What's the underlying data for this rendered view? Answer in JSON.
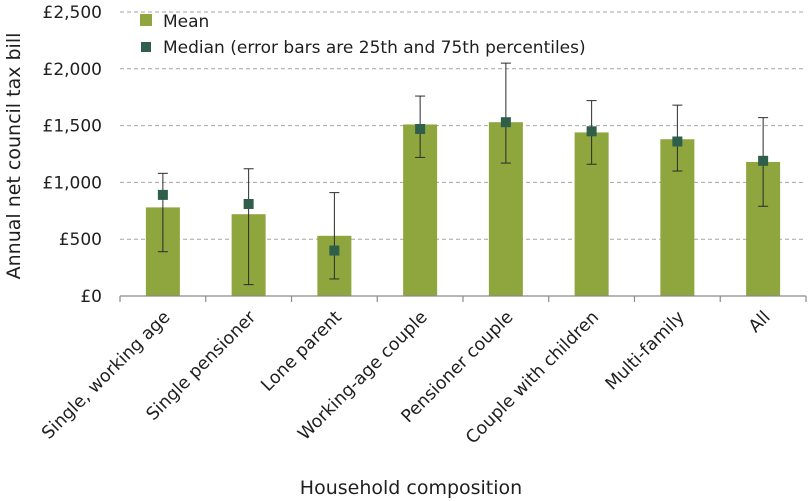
{
  "chart_data": {
    "type": "bar",
    "title": "",
    "xlabel": "Household composition",
    "ylabel": "Annual net council tax bill",
    "ylim": [
      0,
      2500
    ],
    "yticks": [
      0,
      500,
      1000,
      1500,
      2000,
      2500
    ],
    "ytick_labels": [
      "£0",
      "£500",
      "£1,000",
      "£1,500",
      "£2,000",
      "£2,500"
    ],
    "grid": "horizontal dashed",
    "legend_position": "top-left",
    "categories": [
      "Single, working age",
      "Single pensioner",
      "Lone parent",
      "Working-age couple",
      "Pensioner couple",
      "Couple with children",
      "Multi-family",
      "All"
    ],
    "series": [
      {
        "name": "Mean",
        "kind": "bar",
        "color": "#8fa53e",
        "values": [
          780,
          720,
          530,
          1510,
          1530,
          1440,
          1380,
          1180
        ]
      },
      {
        "name": "Median (error bars are 25th and 75th percentiles)",
        "kind": "marker",
        "color": "#2f5f4a",
        "values": [
          890,
          810,
          400,
          1470,
          1530,
          1450,
          1360,
          1190
        ],
        "error_low": [
          390,
          100,
          150,
          1220,
          1170,
          1160,
          1100,
          790
        ],
        "error_high": [
          1080,
          1120,
          910,
          1760,
          2050,
          1720,
          1680,
          1570
        ]
      }
    ]
  }
}
